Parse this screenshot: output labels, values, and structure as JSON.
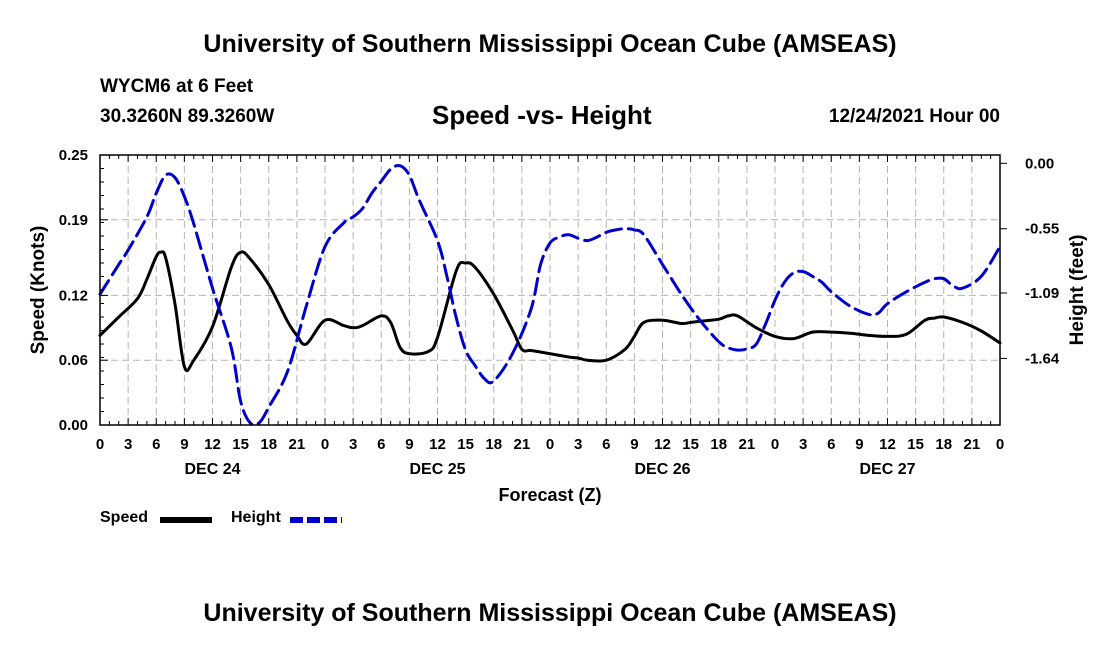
{
  "header": {
    "title": "University of Southern Mississippi Ocean Cube (AMSEAS)",
    "station": "WYCM6 at 6 Feet",
    "coords": "30.3260N  89.3260W",
    "subtitle": "Speed -vs- Height",
    "datetime": "12/24/2021 Hour 00"
  },
  "footer": {
    "title": "University of Southern Mississippi Ocean Cube (AMSEAS)"
  },
  "legend": {
    "speed_label": "Speed",
    "height_label": "Height"
  },
  "colors": {
    "speed": "#000000",
    "height": "#0000cc",
    "grid": "#b4b4b4"
  },
  "chart_data": {
    "type": "line",
    "title": "Speed -vs- Height",
    "xlabel": "Forecast (Z)",
    "ylabel": "Speed (Knots)",
    "y2label": "Height (feet)",
    "x_hours_range": [
      0,
      96
    ],
    "x_ticks": [
      {
        "h": 0,
        "label": "0"
      },
      {
        "h": 3,
        "label": "3"
      },
      {
        "h": 6,
        "label": "6"
      },
      {
        "h": 9,
        "label": "9"
      },
      {
        "h": 12,
        "label": "12"
      },
      {
        "h": 15,
        "label": "15"
      },
      {
        "h": 18,
        "label": "18"
      },
      {
        "h": 21,
        "label": "21"
      },
      {
        "h": 24,
        "label": "0"
      },
      {
        "h": 27,
        "label": "3"
      },
      {
        "h": 30,
        "label": "6"
      },
      {
        "h": 33,
        "label": "9"
      },
      {
        "h": 36,
        "label": "12"
      },
      {
        "h": 39,
        "label": "15"
      },
      {
        "h": 42,
        "label": "18"
      },
      {
        "h": 45,
        "label": "21"
      },
      {
        "h": 48,
        "label": "0"
      },
      {
        "h": 51,
        "label": "3"
      },
      {
        "h": 54,
        "label": "6"
      },
      {
        "h": 57,
        "label": "9"
      },
      {
        "h": 60,
        "label": "12"
      },
      {
        "h": 63,
        "label": "15"
      },
      {
        "h": 66,
        "label": "18"
      },
      {
        "h": 69,
        "label": "21"
      },
      {
        "h": 72,
        "label": "0"
      },
      {
        "h": 75,
        "label": "3"
      },
      {
        "h": 78,
        "label": "6"
      },
      {
        "h": 81,
        "label": "9"
      },
      {
        "h": 84,
        "label": "12"
      },
      {
        "h": 87,
        "label": "15"
      },
      {
        "h": 90,
        "label": "18"
      },
      {
        "h": 93,
        "label": "21"
      },
      {
        "h": 96,
        "label": "0"
      }
    ],
    "day_labels": [
      {
        "h": 12,
        "label": "DEC 24"
      },
      {
        "h": 36,
        "label": "DEC 25"
      },
      {
        "h": 60,
        "label": "DEC 26"
      },
      {
        "h": 84,
        "label": "DEC 27"
      }
    ],
    "y_left": {
      "range": [
        0,
        0.25
      ],
      "ticks": [
        0.0,
        0.06,
        0.12,
        0.19,
        0.25
      ],
      "tick_labels": [
        "0.00",
        "0.06",
        "0.12",
        "0.19",
        "0.25"
      ]
    },
    "y_right": {
      "range": [
        -2.2,
        0.07
      ],
      "ticks": [
        0.0,
        -0.55,
        -1.09,
        -1.64
      ],
      "tick_labels": [
        "0.00",
        "-0.55",
        "-1.09",
        "-1.64"
      ]
    },
    "series": [
      {
        "name": "Speed",
        "axis": "left",
        "style": "solid",
        "x": [
          0,
          2,
          4,
          5,
          6,
          6.5,
          7,
          8,
          9,
          10,
          12,
          14,
          15,
          16,
          18,
          20,
          21,
          22,
          24,
          26,
          27,
          28,
          30,
          31,
          32,
          33,
          35,
          36,
          38,
          39,
          40,
          42,
          44,
          45,
          46,
          48,
          50,
          51,
          52,
          54,
          56,
          57,
          58,
          60,
          62,
          63,
          64,
          66,
          67,
          68,
          70,
          72,
          74,
          76,
          78,
          80,
          82,
          84,
          86,
          88,
          89,
          90,
          92,
          94,
          96
        ],
        "y": [
          0.083,
          0.1,
          0.117,
          0.135,
          0.156,
          0.16,
          0.155,
          0.112,
          0.054,
          0.06,
          0.091,
          0.146,
          0.16,
          0.154,
          0.13,
          0.096,
          0.083,
          0.075,
          0.097,
          0.092,
          0.09,
          0.092,
          0.101,
          0.095,
          0.072,
          0.066,
          0.068,
          0.081,
          0.143,
          0.15,
          0.146,
          0.121,
          0.088,
          0.07,
          0.069,
          0.066,
          0.063,
          0.062,
          0.06,
          0.06,
          0.07,
          0.082,
          0.095,
          0.097,
          0.094,
          0.095,
          0.096,
          0.098,
          0.101,
          0.101,
          0.09,
          0.082,
          0.08,
          0.086,
          0.086,
          0.085,
          0.083,
          0.082,
          0.084,
          0.097,
          0.099,
          0.1,
          0.095,
          0.087,
          0.076
        ]
      },
      {
        "name": "Height",
        "axis": "right",
        "style": "dashed",
        "x": [
          0,
          2,
          3,
          5,
          6,
          7,
          8,
          9,
          10,
          12,
          14,
          15,
          16,
          17,
          18,
          20,
          22,
          24,
          26,
          27,
          28,
          29,
          30,
          31,
          32,
          33,
          34,
          36,
          37,
          38,
          39,
          40,
          41,
          42,
          44,
          46,
          47,
          48,
          49,
          50,
          51,
          52,
          53,
          54,
          55,
          56,
          57,
          58,
          60,
          62,
          64,
          66,
          67,
          68,
          69,
          70,
          71,
          72,
          73,
          74,
          75,
          76,
          77,
          78,
          80,
          82,
          83,
          84,
          86,
          88,
          89,
          90,
          91,
          92,
          94,
          96
        ],
        "y": [
          -1.1,
          -0.85,
          -0.73,
          -0.45,
          -0.25,
          -0.1,
          -0.12,
          -0.28,
          -0.51,
          -1.05,
          -1.55,
          -2.0,
          -2.18,
          -2.18,
          -2.05,
          -1.75,
          -1.2,
          -0.7,
          -0.5,
          -0.45,
          -0.38,
          -0.25,
          -0.15,
          -0.05,
          -0.02,
          -0.1,
          -0.3,
          -0.65,
          -0.95,
          -1.3,
          -1.57,
          -1.7,
          -1.81,
          -1.83,
          -1.6,
          -1.22,
          -0.85,
          -0.67,
          -0.62,
          -0.6,
          -0.63,
          -0.65,
          -0.62,
          -0.58,
          -0.56,
          -0.55,
          -0.56,
          -0.6,
          -0.85,
          -1.1,
          -1.32,
          -1.5,
          -1.55,
          -1.57,
          -1.56,
          -1.52,
          -1.35,
          -1.15,
          -1.0,
          -0.92,
          -0.91,
          -0.95,
          -1.0,
          -1.08,
          -1.2,
          -1.27,
          -1.26,
          -1.18,
          -1.08,
          -1.0,
          -0.97,
          -0.97,
          -1.03,
          -1.05,
          -0.95,
          -0.7
        ]
      }
    ]
  }
}
